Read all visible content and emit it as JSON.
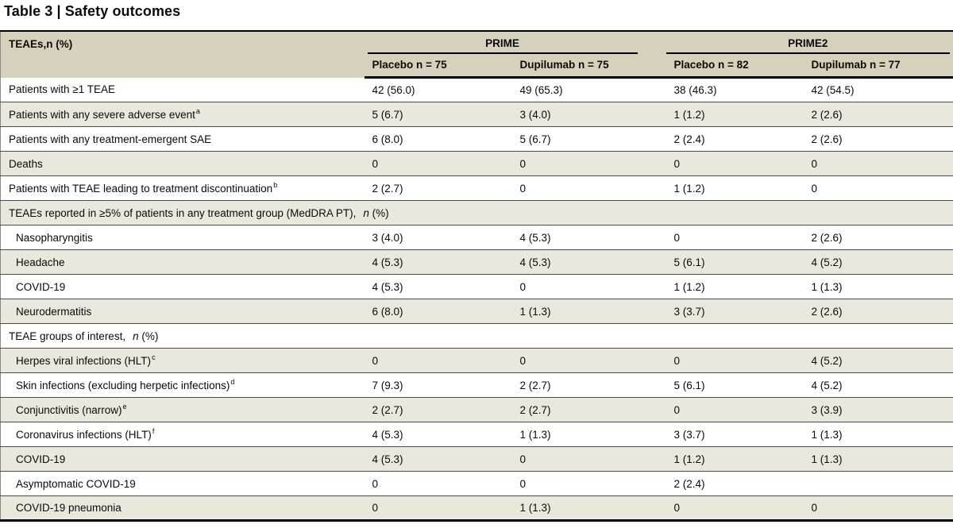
{
  "title": "Table 3 | Safety outcomes",
  "table": {
    "corner_header": "TEAEs,n (%)",
    "groups": [
      {
        "label": "PRIME"
      },
      {
        "label": "PRIME2"
      }
    ],
    "columns": [
      "Placebo n = 75",
      "Dupilumab n = 75",
      "Placebo n = 82",
      "Dupilumab n = 77"
    ],
    "colors": {
      "header_bg": "#d5d1bc",
      "stripe_bg": "#eae8dc",
      "row_line": "#4b4b4b",
      "border": "#000000"
    },
    "rows": [
      {
        "type": "data",
        "label": "Patients with ≥1 TEAE",
        "sup": "",
        "indent": false,
        "values": [
          "42 (56.0)",
          "49 (65.3)",
          "38 (46.3)",
          "42 (54.5)"
        ]
      },
      {
        "type": "data",
        "label": "Patients with any severe adverse event",
        "sup": "a",
        "indent": false,
        "values": [
          "5 (6.7)",
          "3 (4.0)",
          "1 (1.2)",
          "2 (2.6)"
        ]
      },
      {
        "type": "data",
        "label": "Patients with any treatment-emergent SAE",
        "sup": "",
        "indent": false,
        "values": [
          "6 (8.0)",
          "5 (6.7)",
          "2 (2.4)",
          "2 (2.6)"
        ]
      },
      {
        "type": "data",
        "label": "Deaths",
        "sup": "",
        "indent": false,
        "values": [
          "0",
          "0",
          "0",
          "0"
        ]
      },
      {
        "type": "data",
        "label": "Patients with TEAE leading to treatment discontinuation",
        "sup": "b",
        "indent": false,
        "values": [
          "2 (2.7)",
          "0",
          "1 (1.2)",
          "0"
        ]
      },
      {
        "type": "section",
        "pre": "TEAEs reported in ≥5% of patients in any treatment group (MedDRA PT),",
        "mid": "n",
        "post": " (%)"
      },
      {
        "type": "data",
        "label": "Nasopharyngitis",
        "sup": "",
        "indent": true,
        "values": [
          "3 (4.0)",
          "4 (5.3)",
          "0",
          "2 (2.6)"
        ]
      },
      {
        "type": "data",
        "label": "Headache",
        "sup": "",
        "indent": true,
        "values": [
          "4 (5.3)",
          "4 (5.3)",
          "5 (6.1)",
          "4 (5.2)"
        ]
      },
      {
        "type": "data",
        "label": "COVID-19",
        "sup": "",
        "indent": true,
        "values": [
          "4 (5.3)",
          "0",
          "1 (1.2)",
          "1 (1.3)"
        ]
      },
      {
        "type": "data",
        "label": "Neurodermatitis",
        "sup": "",
        "indent": true,
        "values": [
          "6 (8.0)",
          "1 (1.3)",
          "3 (3.7)",
          "2 (2.6)"
        ]
      },
      {
        "type": "section",
        "pre": "TEAE groups of interest,",
        "mid": "n",
        "post": " (%)"
      },
      {
        "type": "data",
        "label": "Herpes viral infections (HLT)",
        "sup": "c",
        "indent": true,
        "values": [
          "0",
          "0",
          "0",
          "4 (5.2)"
        ]
      },
      {
        "type": "data",
        "label": "Skin infections (excluding herpetic infections)",
        "sup": "d",
        "indent": true,
        "values": [
          "7 (9.3)",
          "2 (2.7)",
          "5 (6.1)",
          "4 (5.2)"
        ]
      },
      {
        "type": "data",
        "label": "Conjunctivitis (narrow)",
        "sup": "e",
        "indent": true,
        "values": [
          "2 (2.7)",
          "2 (2.7)",
          "0",
          "3 (3.9)"
        ]
      },
      {
        "type": "data",
        "label": "Coronavirus infections (HLT)",
        "sup": "f",
        "indent": true,
        "values": [
          "4 (5.3)",
          "1 (1.3)",
          "3 (3.7)",
          "1 (1.3)"
        ]
      },
      {
        "type": "data",
        "label": "COVID-19",
        "sup": "",
        "indent": true,
        "values": [
          "4 (5.3)",
          "0",
          "1 (1.2)",
          "1 (1.3)"
        ]
      },
      {
        "type": "data",
        "label": "Asymptomatic COVID-19",
        "sup": "",
        "indent": true,
        "values": [
          "0",
          "0",
          "2 (2.4)",
          ""
        ]
      },
      {
        "type": "data",
        "label": "COVID-19 pneumonia",
        "sup": "",
        "indent": true,
        "values": [
          "0",
          "1 (1.3)",
          "0",
          "0"
        ]
      }
    ]
  }
}
